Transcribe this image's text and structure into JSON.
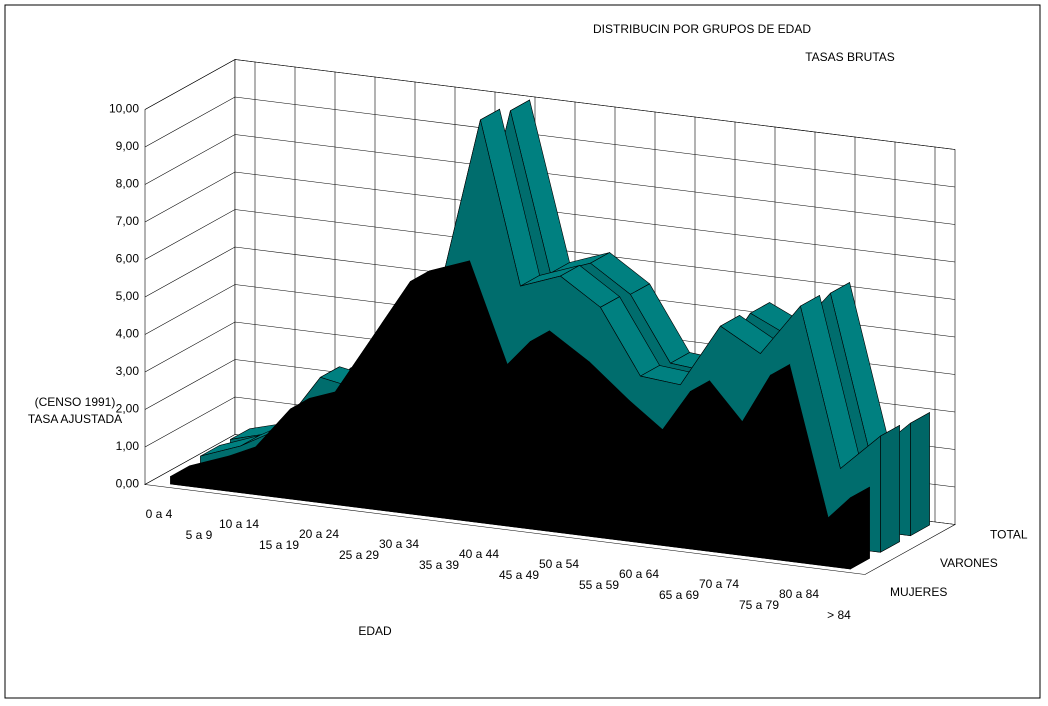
{
  "chart_data": {
    "type": "area3d",
    "title": "DISTRIBUCIN POR GRUPOS DE EDAD",
    "subtitle": "TASAS BRUTAS",
    "y_label": [
      "(CENSO 1991)",
      "TASA AJUSTADA"
    ],
    "x_label": "EDAD",
    "categories": [
      "0 a 4",
      "5 a 9",
      "10 a 14",
      "15 a 19",
      "20 a 24",
      "25 a 29",
      "30 a 34",
      "35 a 39",
      "40 a 44",
      "45 a 49",
      "50 a 54",
      "55 a 59",
      "60 a 64",
      "65 a 69",
      "70 a 74",
      "75 a 79",
      "80 a 84",
      "> 84"
    ],
    "series": [
      {
        "name": "TOTAL",
        "color": "#008080",
        "values": [
          0.3,
          0.6,
          1.2,
          2.6,
          2.5,
          4.8,
          5.5,
          10.0,
          5.8,
          6.2,
          5.5,
          3.8,
          3.7,
          5.4,
          4.9,
          6.2,
          2.0,
          3.0
        ]
      },
      {
        "name": "VARONES",
        "color": "#008080",
        "values": [
          0.3,
          0.7,
          1.3,
          2.8,
          2.6,
          5.0,
          5.6,
          10.2,
          5.9,
          6.3,
          5.6,
          3.9,
          3.8,
          5.5,
          4.9,
          6.3,
          2.1,
          3.1
        ]
      },
      {
        "name": "MUJERES",
        "color": "#000000",
        "values": [
          0.2,
          0.6,
          1.1,
          2.4,
          2.8,
          4.5,
          6.2,
          6.6,
          3.8,
          5.0,
          4.3,
          3.4,
          2.6,
          4.2,
          3.0,
          4.9,
          0.8,
          1.9
        ]
      }
    ],
    "ylim": [
      0,
      10
    ],
    "yticks": [
      {
        "value": 0,
        "label": "0,00"
      },
      {
        "value": 1,
        "label": "1,00"
      },
      {
        "value": 2,
        "label": "2,00"
      },
      {
        "value": 3,
        "label": "3,00"
      },
      {
        "value": 4,
        "label": "4,00"
      },
      {
        "value": 5,
        "label": "5,00"
      },
      {
        "value": 6,
        "label": "6,00"
      },
      {
        "value": 7,
        "label": "7,00"
      },
      {
        "value": 8,
        "label": "8,00"
      },
      {
        "value": 9,
        "label": "9,00"
      },
      {
        "value": 10,
        "label": "10,00"
      }
    ],
    "grid": true
  }
}
